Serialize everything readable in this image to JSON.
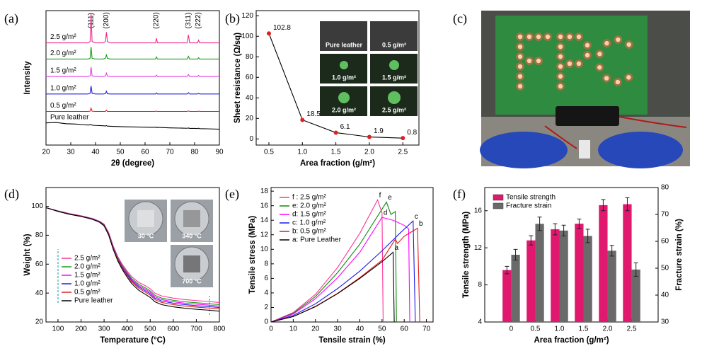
{
  "photo": {
    "panel_label": "(c)"
  },
  "chart_data": [
    {
      "type": "line",
      "panel_label": "(a)",
      "xlabel": "2θ (degree)",
      "ylabel": "Intensity",
      "xlim": [
        20,
        90
      ],
      "xticks": [
        20,
        30,
        40,
        50,
        60,
        70,
        80,
        90
      ],
      "ylim": [
        0,
        100
      ],
      "yticks": [],
      "series_labels": "on-curve",
      "x": [
        20,
        24,
        28,
        32,
        35,
        37,
        37.8,
        38.2,
        38.6,
        40,
        43,
        44,
        44.4,
        44.8,
        46,
        52,
        58,
        63,
        64.2,
        64.6,
        65,
        70,
        75,
        77,
        77.5,
        78,
        80,
        81.2,
        81.6,
        82,
        85,
        90
      ],
      "peak_labels": [
        {
          "text": "(111)",
          "x": 38.2
        },
        {
          "text": "(200)",
          "x": 44.4
        },
        {
          "text": "(220)",
          "x": 64.6
        },
        {
          "text": "(311)",
          "x": 77.5
        },
        {
          "text": "(222)",
          "x": 81.6
        }
      ],
      "series": [
        {
          "name": "2.5 g/m²",
          "color": "#f0288c",
          "values": [
            76,
            76,
            76,
            76,
            76,
            76,
            77,
            98,
            77,
            76,
            76,
            77,
            84,
            77,
            76,
            76,
            76,
            76,
            76,
            79.5,
            76,
            76,
            76,
            76,
            82,
            76,
            76,
            76,
            78,
            76,
            76,
            76
          ]
        },
        {
          "name": "2.0 g/m²",
          "color": "#1a9a1a",
          "values": [
            64,
            64,
            64,
            64,
            64,
            64,
            64.5,
            73,
            64.5,
            64,
            64,
            64.5,
            67,
            64.5,
            64,
            64,
            64,
            64,
            64,
            65.5,
            64,
            64,
            64,
            64,
            66,
            64,
            64,
            64,
            65,
            64,
            64,
            64
          ]
        },
        {
          "name": "1.5 g/m²",
          "color": "#e040e0",
          "values": [
            51,
            51,
            51,
            51,
            51,
            51,
            51.5,
            58,
            51.5,
            51,
            51,
            51.3,
            53.5,
            51.3,
            51,
            51,
            51,
            51,
            51,
            52,
            51,
            51,
            51,
            51,
            52.5,
            51,
            51,
            51,
            51.8,
            51,
            51,
            51
          ]
        },
        {
          "name": "1.0 g/m²",
          "color": "#2020e0",
          "values": [
            38,
            38,
            38,
            38,
            38,
            38,
            38.5,
            44,
            38.5,
            38,
            38,
            38.2,
            40,
            38.2,
            38,
            38,
            38,
            38,
            38,
            38.8,
            38,
            38,
            38,
            38,
            39,
            38,
            38,
            38,
            38.5,
            38,
            38,
            38
          ]
        },
        {
          "name": "0.5 g/m²",
          "color": "#e02020",
          "values": [
            25,
            25,
            25,
            25,
            25,
            25,
            25.2,
            27.5,
            25.2,
            25,
            25,
            25,
            26,
            25,
            25,
            25,
            25,
            25,
            25,
            25.3,
            25,
            25,
            25,
            25,
            25.4,
            25,
            25,
            25,
            25.2,
            25,
            25,
            25
          ]
        },
        {
          "name": "Pure leather",
          "color": "#000000",
          "values": [
            16.5,
            16.8,
            15.9,
            15.6,
            15.2,
            14.9,
            15.1,
            15.3,
            14.8,
            14.6,
            14.4,
            14.2,
            14.5,
            14.1,
            14,
            13.6,
            13.4,
            13.2,
            13.3,
            13,
            13.2,
            12.8,
            12.6,
            12.5,
            12.7,
            12.4,
            12.4,
            12.3,
            12.5,
            12.2,
            12.1,
            11.8
          ]
        }
      ]
    },
    {
      "type": "line",
      "panel_label": "(b)",
      "xlabel": "Area fraction (g/m²)",
      "ylabel": "Sheet resistance (Ω/sq)",
      "xlim": [
        0.31,
        2.74
      ],
      "xticks": [
        0.5,
        {
          "value": 1,
          "label": "1.0"
        },
        1.5,
        {
          "value": 2,
          "label": "2.0"
        },
        2.5
      ],
      "ylim": [
        -6,
        125
      ],
      "yticks": [
        0,
        20,
        40,
        60,
        80,
        100,
        120
      ],
      "markers": true,
      "data_labels": true,
      "label_color": "#e02020",
      "x": [
        0.5,
        1.0,
        1.5,
        2.0,
        2.5
      ],
      "series": [
        {
          "name": "Sheet resistance",
          "color": "#000000",
          "marker_color": "#e02020",
          "values": [
            102.8,
            18.5,
            6.1,
            1.9,
            0.8
          ]
        }
      ],
      "insets": [
        "Pure leather",
        "0.5 g/m²",
        "1.0 g/m²",
        "1.5 g/m²",
        "2.0 g/m²",
        "2.5 g/m²"
      ]
    },
    {
      "type": "line",
      "panel_label": "(d)",
      "xlabel": "Temperature (°C)",
      "ylabel": "Weight (%)",
      "xlim": [
        48,
        800
      ],
      "xticks": [
        100,
        200,
        300,
        400,
        500,
        600,
        700,
        800
      ],
      "ylim": [
        20,
        113
      ],
      "yticks": [
        20,
        40,
        60,
        80,
        100
      ],
      "legend": "lower left",
      "x": [
        50,
        100,
        150,
        200,
        250,
        280,
        300,
        320,
        340,
        360,
        380,
        400,
        420,
        450,
        480,
        500,
        520,
        550,
        600,
        650,
        700,
        750,
        800
      ],
      "insets": [
        "30 °C",
        "340 °C",
        "700 °C"
      ],
      "series": [
        {
          "name": "2.5 g/m²",
          "color": "#ff3399",
          "values": [
            99,
            96.9,
            95,
            93.5,
            91.6,
            89.7,
            87.7,
            81.8,
            72.4,
            65,
            59.6,
            55.2,
            51.3,
            47.4,
            45,
            43,
            40,
            38,
            36.5,
            35.5,
            34.8,
            34.2,
            33.5
          ]
        },
        {
          "name": "2.0 g/m²",
          "color": "#1a9a1a",
          "values": [
            99,
            96.8,
            94.8,
            93.3,
            91.4,
            89.5,
            87.4,
            81.3,
            71.8,
            64.3,
            58.7,
            54.2,
            50.1,
            46.1,
            43.5,
            41.5,
            38.5,
            36.5,
            35,
            34,
            33.3,
            32.7,
            32
          ]
        },
        {
          "name": "1.5 g/m²",
          "color": "#ff00ff",
          "values": [
            99,
            96.7,
            94.7,
            93.2,
            91.3,
            89.4,
            87.2,
            81,
            71.4,
            63.8,
            58.1,
            53.5,
            49.3,
            45.2,
            42.5,
            40.5,
            37.5,
            35.5,
            34,
            33,
            32.3,
            31.7,
            31
          ]
        },
        {
          "name": "1.0 g/m²",
          "color": "#2020e0",
          "values": [
            99,
            96.6,
            94.6,
            93.1,
            91.2,
            89.3,
            87,
            80.8,
            71,
            63.3,
            57.5,
            52.8,
            48.5,
            44.3,
            41.5,
            39.5,
            36.5,
            34.5,
            33,
            32,
            31.3,
            30.7,
            30
          ]
        },
        {
          "name": "0.5 g/m²",
          "color": "#e02020",
          "values": [
            99,
            96.5,
            94.5,
            93,
            91,
            89.2,
            86.8,
            80.5,
            70.6,
            62.8,
            56.9,
            52.1,
            47.7,
            43.4,
            40.5,
            38.5,
            35.5,
            33.5,
            32,
            31,
            30.3,
            29.7,
            29
          ]
        },
        {
          "name": "Pure leather",
          "color": "#000000",
          "values": [
            99,
            96.5,
            94.5,
            93,
            91,
            89,
            86.5,
            80,
            70,
            62,
            56,
            51,
            46.5,
            42,
            39,
            37,
            34,
            32,
            30.5,
            29.5,
            28.8,
            28.2,
            27.5
          ]
        }
      ]
    },
    {
      "type": "line",
      "panel_label": "(e)",
      "xlabel": "Tensile strain (%)",
      "ylabel": "Tensile stress (MPa)",
      "xlim": [
        0,
        73
      ],
      "xticks": [
        0,
        10,
        20,
        30,
        40,
        50,
        60,
        70
      ],
      "ylim": [
        0,
        18.5
      ],
      "yticks": [
        0,
        2,
        4,
        6,
        8,
        10,
        12,
        14,
        16,
        18
      ],
      "legend": "upper left",
      "series": [
        {
          "name": "f : 2.5 g/m²",
          "label": "f",
          "color": "#ff3399",
          "x": [
            0,
            10,
            20,
            30,
            40,
            48,
            50,
            50.5
          ],
          "values": [
            0,
            1.3,
            3.8,
            7.5,
            12.2,
            16.8,
            15,
            0
          ]
        },
        {
          "name": "e: 2.0 g/m²",
          "label": "e",
          "color": "#0a8a0a",
          "x": [
            0,
            10,
            20,
            30,
            40,
            52,
            54,
            56,
            56.5
          ],
          "values": [
            0,
            1.2,
            3.5,
            6.8,
            10.7,
            16.5,
            14.8,
            15.2,
            0
          ]
        },
        {
          "name": "d: 1.5 g/m²",
          "label": "d",
          "color": "#ff00ff",
          "x": [
            0,
            10,
            20,
            30,
            40,
            50,
            55,
            60,
            62,
            62.5
          ],
          "values": [
            0,
            1.1,
            3.2,
            6.1,
            9.6,
            14.4,
            14,
            13.3,
            12.8,
            0
          ]
        },
        {
          "name": "c: 1.0 g/m²",
          "label": "c",
          "color": "#1a1ae6",
          "x": [
            0,
            10,
            20,
            30,
            40,
            50,
            58,
            64,
            65
          ],
          "values": [
            0,
            0.9,
            2.5,
            4.6,
            7,
            9.8,
            12.2,
            13.9,
            0
          ]
        },
        {
          "name": "b: 0.5 g/m²",
          "label": "b",
          "color": "#e61a1a",
          "x": [
            0,
            10,
            20,
            30,
            40,
            50,
            56,
            57,
            60,
            66,
            67
          ],
          "values": [
            0,
            0.76,
            2.15,
            3.95,
            6.1,
            8.5,
            11.4,
            10.8,
            11.8,
            12.9,
            0
          ]
        },
        {
          "name": "a: Pure Leather",
          "label": "a",
          "color": "#000000",
          "x": [
            0,
            10,
            20,
            30,
            40,
            50,
            55,
            55.5
          ],
          "values": [
            0,
            0.74,
            2.1,
            3.9,
            6,
            8.3,
            9.6,
            0
          ]
        }
      ]
    },
    {
      "type": "bar",
      "panel_label": "(f)",
      "xlabel": "Area fraction (g/m²)",
      "ylabel": "Tensile strength (MPa)",
      "y2label": "Fracture strain (%)",
      "categories": [
        "0",
        "0.5",
        "1.0",
        "1.5",
        "2.0",
        "2.5"
      ],
      "ylim": [
        4,
        18.5
      ],
      "yticks": [
        4,
        8,
        12,
        16
      ],
      "y2lim": [
        30,
        80
      ],
      "y2ticks": [
        30,
        40,
        50,
        60,
        70,
        80
      ],
      "legend": "upper left",
      "series": [
        {
          "name": "Tensile strength",
          "color": "#e0186e",
          "values": [
            9.6,
            12.8,
            14.0,
            14.6,
            16.6,
            16.7
          ],
          "errors": [
            0.4,
            0.5,
            0.6,
            0.5,
            0.6,
            0.7
          ]
        },
        {
          "name": "Fracture strain",
          "color": "#6a6a6a",
          "axis": "y2",
          "values": [
            55,
            66.5,
            64,
            62,
            56.5,
            49.5
          ],
          "errors": [
            2,
            2.5,
            2,
            2.5,
            2,
            2.5
          ]
        }
      ]
    }
  ]
}
